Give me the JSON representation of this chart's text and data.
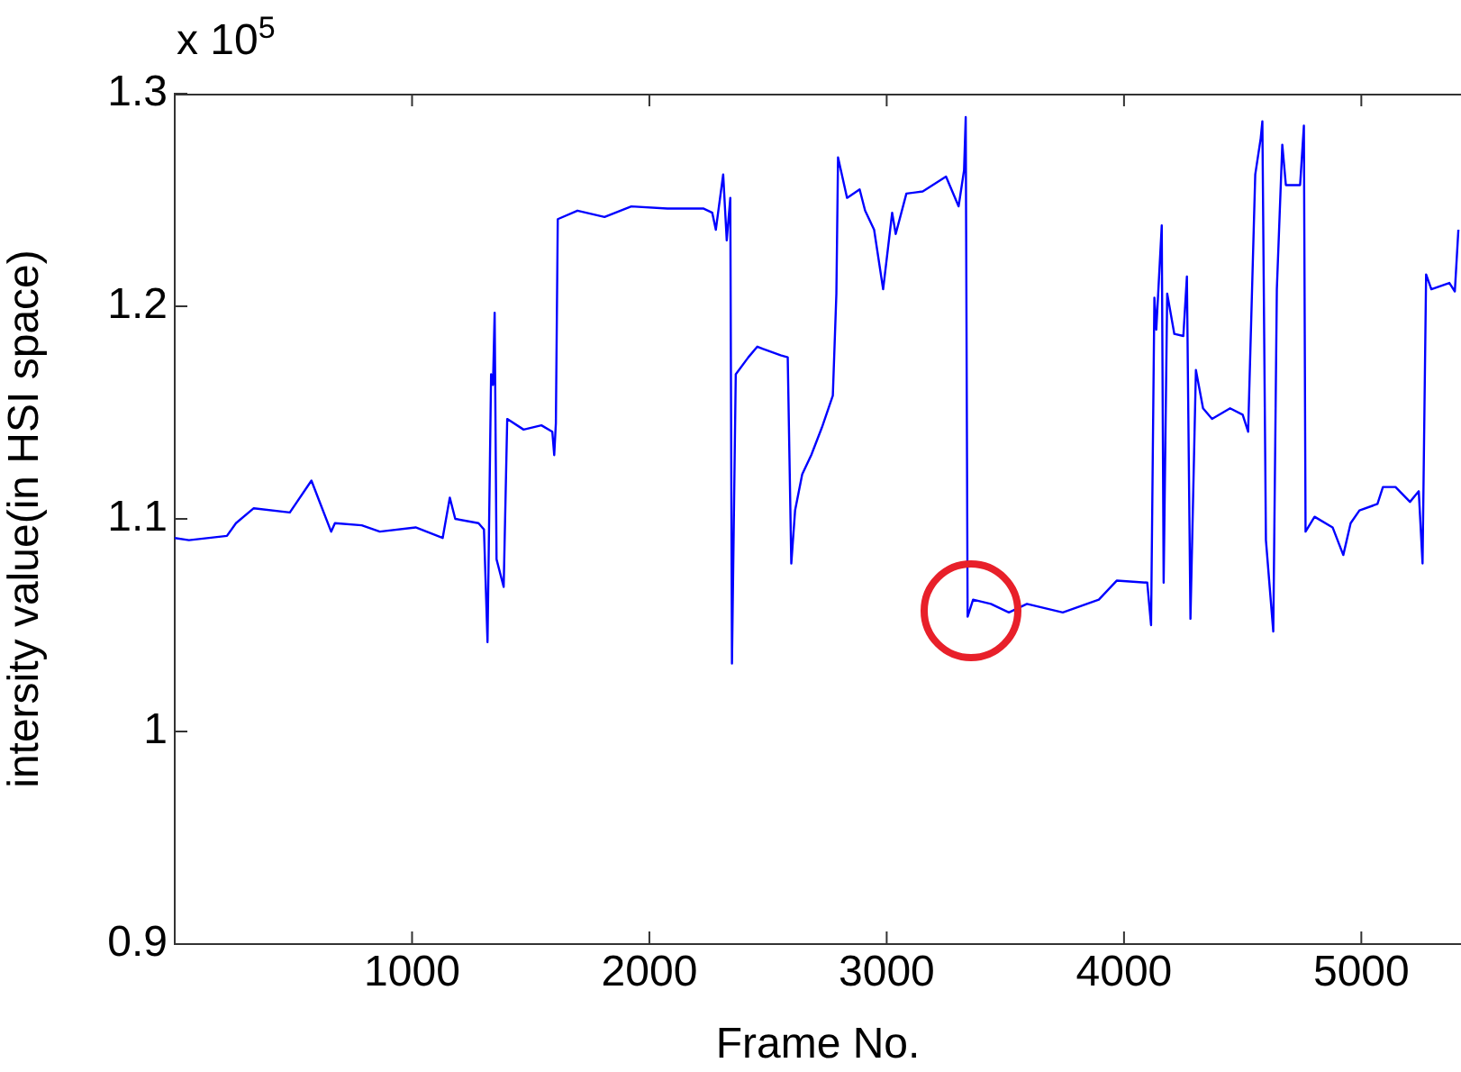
{
  "chart_data": {
    "type": "line",
    "xlabel": "Frame No.",
    "ylabel": "intersity value(in HSI space)",
    "annotations": [
      "x 10$^{5}$"
    ],
    "xlim": [
      0,
      5420
    ],
    "ylim": [
      0.9,
      1.3
    ],
    "xticks": [
      1000,
      2000,
      3000,
      4000,
      5000
    ],
    "yticks": [
      0.9,
      1,
      1.1,
      1.2,
      1.3
    ],
    "grid": false,
    "legend": false,
    "marker": "none",
    "line_style": "solid",
    "series": [
      {
        "color": "#0000ff",
        "x": [
          0,
          60,
          220,
          258,
          333,
          485,
          576,
          614,
          659,
          675,
          788,
          864,
          1015,
          1129,
          1159,
          1182,
          1280,
          1303,
          1318,
          1333,
          1341,
          1348,
          1356,
          1386,
          1401,
          1470,
          1545,
          1591,
          1599,
          1606,
          1614,
          1697,
          1811,
          1924,
          2076,
          2227,
          2265,
          2280,
          2311,
          2326,
          2341,
          2348,
          2364,
          2417,
          2455,
          2477,
          2553,
          2583,
          2598,
          2614,
          2644,
          2682,
          2727,
          2773,
          2788,
          2795,
          2833,
          2886,
          2909,
          2947,
          2985,
          3023,
          3038,
          3083,
          3152,
          3250,
          3303,
          3326,
          3333,
          3341,
          3364,
          3439,
          3515,
          3591,
          3742,
          3894,
          3970,
          4098,
          4114,
          4128,
          4136,
          4159,
          4167,
          4182,
          4212,
          4250,
          4265,
          4280,
          4303,
          4333,
          4371,
          4447,
          4500,
          4523,
          4553,
          4576,
          4583,
          4598,
          4629,
          4644,
          4667,
          4682,
          4742,
          4758,
          4765,
          4803,
          4879,
          4924,
          4955,
          4992,
          5068,
          5091,
          5144,
          5205,
          5242,
          5258,
          5273,
          5295,
          5371,
          5394,
          5409
        ],
        "values": [
          1.091,
          1.09,
          1.092,
          1.098,
          1.105,
          1.103,
          1.118,
          1.107,
          1.094,
          1.098,
          1.097,
          1.094,
          1.096,
          1.091,
          1.11,
          1.1,
          1.098,
          1.095,
          1.042,
          1.168,
          1.163,
          1.197,
          1.081,
          1.068,
          1.147,
          1.142,
          1.144,
          1.141,
          1.13,
          1.145,
          1.241,
          1.245,
          1.242,
          1.247,
          1.246,
          1.246,
          1.244,
          1.236,
          1.262,
          1.231,
          1.251,
          1.032,
          1.168,
          1.176,
          1.181,
          1.18,
          1.177,
          1.176,
          1.079,
          1.104,
          1.121,
          1.13,
          1.143,
          1.158,
          1.206,
          1.27,
          1.251,
          1.255,
          1.245,
          1.236,
          1.208,
          1.244,
          1.234,
          1.253,
          1.254,
          1.261,
          1.247,
          1.264,
          1.289,
          1.054,
          1.062,
          1.06,
          1.056,
          1.06,
          1.056,
          1.062,
          1.071,
          1.07,
          1.05,
          1.204,
          1.189,
          1.238,
          1.07,
          1.206,
          1.187,
          1.186,
          1.214,
          1.053,
          1.17,
          1.152,
          1.147,
          1.152,
          1.149,
          1.141,
          1.262,
          1.279,
          1.287,
          1.09,
          1.047,
          1.208,
          1.276,
          1.257,
          1.257,
          1.285,
          1.094,
          1.101,
          1.096,
          1.083,
          1.098,
          1.104,
          1.107,
          1.115,
          1.115,
          1.108,
          1.113,
          1.079,
          1.215,
          1.208,
          1.211,
          1.207,
          1.236
        ]
      }
    ]
  }
}
